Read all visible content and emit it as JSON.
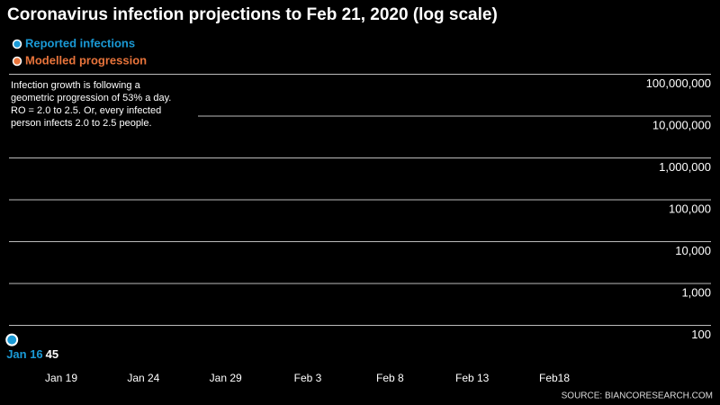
{
  "chart_data": {
    "type": "scatter",
    "title": "Coronavirus infection projections to Feb 21, 2020 (log scale)",
    "annotation": [
      "Infection growth is following a",
      "geometric progression of 53% a day.",
      "RO = 2.0 to 2.5. Or, every infected",
      "person infects 2.0 to 2.5 people."
    ],
    "source": "SOURCE: BIANCORESEARCH.COM",
    "log_scale": true,
    "grid": true,
    "legend": "top-left",
    "series": [
      {
        "name": "Reported infections",
        "color": "#1a9ad6",
        "x": [
          "Jan 16"
        ],
        "values": [
          45
        ]
      },
      {
        "name": "Modelled progression",
        "color": "#e8743b"
      }
    ],
    "xticks": [
      "Jan 19",
      "Jan 24",
      "Jan 29",
      "Feb 3",
      "Feb 8",
      "Feb 13",
      "Feb18"
    ],
    "ylim": [
      10,
      1000000000
    ],
    "yticks": [
      100,
      {
        "value": 1000,
        "label": "1,000"
      },
      {
        "value": 10000,
        "label": "10,000"
      },
      {
        "value": 100000,
        "label": "100,000"
      },
      {
        "value": 1000000,
        "label": "1,000,000"
      },
      {
        "value": 10000000,
        "label": "10,000,000"
      },
      {
        "value": 100000000,
        "label": "100,000,000"
      }
    ]
  }
}
